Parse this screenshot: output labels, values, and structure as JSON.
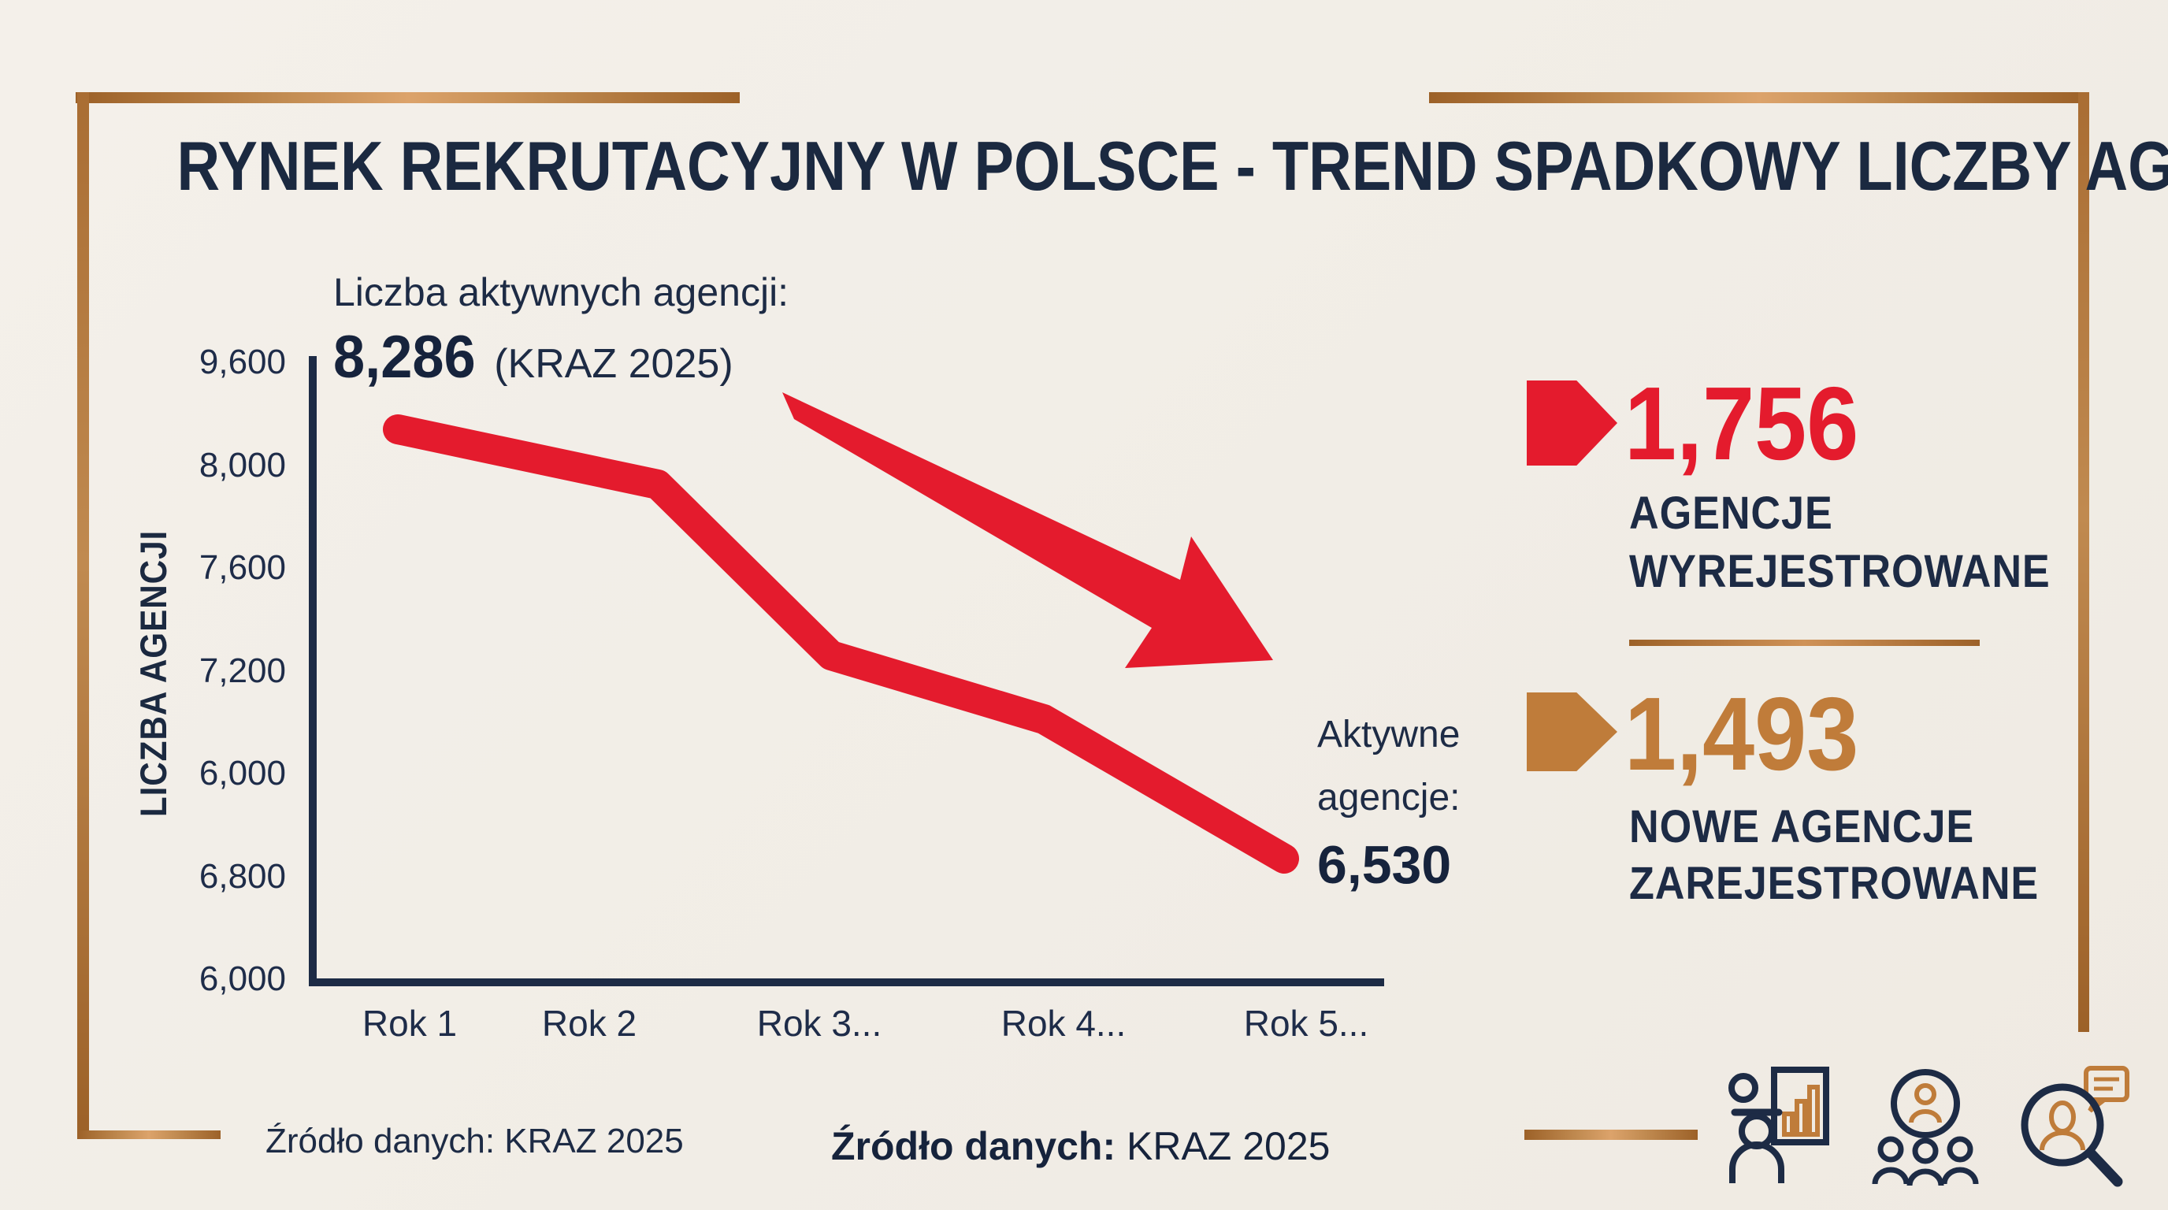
{
  "page": {
    "background": "#f2eee7",
    "navy": "#1d2b45",
    "red": "#e41b2d",
    "gold": "#bf7c3a",
    "frame_copper": "#b27a42"
  },
  "title": "RYNEK REKRUTACYJNY W POLSCE - TREND SPADKOWY LICZBY AGENCJI",
  "chart_data": {
    "type": "line",
    "title": "Trend spadkowy liczby agencji",
    "xlabel": "",
    "ylabel": "LICZBA AGENCJI",
    "categories": [
      "Rok 1",
      "Rok 2",
      "Rok 3...",
      "Rok 4...",
      "Rok 5..."
    ],
    "y_tick_labels": [
      "9,600",
      "8,000",
      "7,600",
      "7,200",
      "6,000",
      "6,800",
      "6,000"
    ],
    "series": [
      {
        "name": "Liczba aktywnych agencji",
        "values": [
          8286,
          8060,
          7360,
          7100,
          6530
        ],
        "color": "#e41b2d",
        "labeled_points": {
          "Rok 1": 8286,
          "Rok 5...": 6530
        }
      }
    ],
    "grid": false,
    "legend": "none",
    "annotations": {
      "start": {
        "label": "Liczba aktywnych agencji:",
        "value": "8,286",
        "suffix": "(KRAZ 2025)"
      },
      "end": {
        "label_line1": "Aktywne",
        "label_line2": "agencje:",
        "value": "6,530"
      },
      "trend_arrow": "down-right"
    }
  },
  "stats": [
    {
      "value": "1,756",
      "label_line1": "AGENCJE",
      "label_line2": "WYREJESTROWANE",
      "color": "#e41b2d",
      "icon": "arrow-right-pentagon-red"
    },
    {
      "value": "1,493",
      "label_line1": "NOWE AGENCJE",
      "label_line2": "ZAREJESTROWANE",
      "color": "#bf7c3a",
      "icon": "arrow-right-pentagon-gold"
    }
  ],
  "sources": {
    "left": "Źródło danych: KRAZ 2025",
    "center_bold": "Źródło danych:",
    "center_rest": " KRAZ 2025"
  },
  "icons": [
    "presenter-chart-icon",
    "team-icon",
    "candidate-search-icon"
  ]
}
